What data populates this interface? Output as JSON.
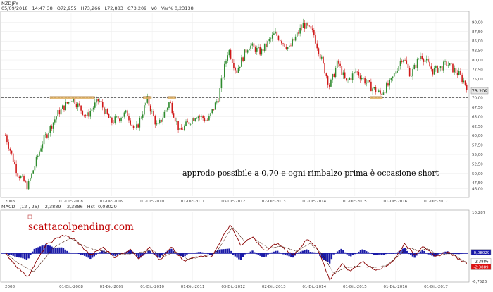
{
  "header": {
    "symbol": "NZDJPY",
    "stats": [
      "05/09/2018",
      "14:47:38",
      "O72,955",
      "H73,266",
      "L72,883",
      "C73,209",
      "V0",
      "Var% 0,23138"
    ]
  },
  "macd_header": {
    "name": "MACD",
    "params": "(12 , 26)",
    "value1": "-2,3889",
    "value2": "-2,3886",
    "hist": "Hst  -0,08029"
  },
  "annotation": "approdo possibile a 0,70 e ogni rimbalzo prima è occasione short",
  "watermark": "scattacolpending.com",
  "colors": {
    "up_candle": "#2e8b2e",
    "down_candle": "#d01818",
    "macd_line": "#8a0000",
    "signal_line": "#4a1a0a",
    "histogram": "#1a1aa8",
    "support_line": "#444444",
    "highlight": "#e0b060",
    "price_tag_bg": "#e6e6e6",
    "red_tag": "#dd1111",
    "blue_tag": "#1a1aa8"
  },
  "chart_data": [
    {
      "type": "candlestick",
      "title": "NZDJPY",
      "ylim": [
        44.0,
        92.5
      ],
      "y_ticks": [
        "90,00",
        "87,50",
        "85,00",
        "82,50",
        "80,00",
        "77,50",
        "75,00",
        "72,50",
        "70,00",
        "67,50",
        "65,00",
        "62,50",
        "60,00",
        "57,50",
        "55,00",
        "52,50",
        "50,00",
        "47,50",
        "46,00"
      ],
      "x_ticks": [
        "01-Dic-2008",
        "01-Dic-2009",
        "01-Dic-2010",
        "01-Dic-2011",
        "03-Dic-2012",
        "02-Dic-2013",
        "01-Dic-2014",
        "01-Dic-2015",
        "01-Dic-2016",
        "01-Dic-2017"
      ],
      "last_price_label": "73,209",
      "support_level": 70.0,
      "highlighted_zones": [
        {
          "from": "2008.4",
          "to": "2009.5",
          "level": 70.0
        },
        {
          "from": "2010.7",
          "to": "2010.9",
          "level": 70.0
        },
        {
          "from": "2011.3",
          "to": "2011.5",
          "level": 70.0
        },
        {
          "from": "2016.3",
          "to": "2016.6",
          "level": 70.0
        }
      ],
      "key_points": [
        {
          "x": 2007.3,
          "y": 60.0
        },
        {
          "x": 2007.6,
          "y": 50.0
        },
        {
          "x": 2007.85,
          "y": 46.5
        },
        {
          "x": 2008.2,
          "y": 58.0
        },
        {
          "x": 2008.6,
          "y": 66.0
        },
        {
          "x": 2008.95,
          "y": 70.0
        },
        {
          "x": 2009.3,
          "y": 65.0
        },
        {
          "x": 2009.6,
          "y": 69.5
        },
        {
          "x": 2009.9,
          "y": 63.5
        },
        {
          "x": 2010.3,
          "y": 66.0
        },
        {
          "x": 2010.5,
          "y": 61.0
        },
        {
          "x": 2010.8,
          "y": 69.5
        },
        {
          "x": 2011.05,
          "y": 62.0
        },
        {
          "x": 2011.35,
          "y": 69.0
        },
        {
          "x": 2011.6,
          "y": 61.0
        },
        {
          "x": 2012.0,
          "y": 65.5
        },
        {
          "x": 2012.3,
          "y": 64.0
        },
        {
          "x": 2012.55,
          "y": 70.0
        },
        {
          "x": 2012.8,
          "y": 83.0
        },
        {
          "x": 2013.0,
          "y": 77.0
        },
        {
          "x": 2013.3,
          "y": 84.0
        },
        {
          "x": 2013.6,
          "y": 82.0
        },
        {
          "x": 2013.95,
          "y": 87.0
        },
        {
          "x": 2014.3,
          "y": 83.0
        },
        {
          "x": 2014.65,
          "y": 89.5
        },
        {
          "x": 2014.9,
          "y": 87.0
        },
        {
          "x": 2015.1,
          "y": 80.0
        },
        {
          "x": 2015.3,
          "y": 73.0
        },
        {
          "x": 2015.5,
          "y": 79.5
        },
        {
          "x": 2015.7,
          "y": 74.0
        },
        {
          "x": 2015.95,
          "y": 77.0
        },
        {
          "x": 2016.3,
          "y": 73.0
        },
        {
          "x": 2016.55,
          "y": 71.0
        },
        {
          "x": 2016.8,
          "y": 74.0
        },
        {
          "x": 2017.1,
          "y": 81.0
        },
        {
          "x": 2017.3,
          "y": 76.0
        },
        {
          "x": 2017.55,
          "y": 81.5
        },
        {
          "x": 2017.85,
          "y": 77.0
        },
        {
          "x": 2018.2,
          "y": 79.0
        },
        {
          "x": 2018.5,
          "y": 76.0
        },
        {
          "x": 2018.68,
          "y": 73.2
        }
      ]
    },
    {
      "type": "line",
      "title": "MACD",
      "ylim": [
        -6.7526,
        10.287
      ],
      "y_ticks": [
        "10,287",
        "-6,7526"
      ],
      "right_labels": [
        "-0,08029",
        "-2,3886",
        "-2,3889"
      ],
      "x_ticks": [
        "01-Dic-2008",
        "01-Dic-2009",
        "01-Dic-2010",
        "01-Dic-2011",
        "03-Dic-2012",
        "02-Dic-2013",
        "01-Dic-2014",
        "01-Dic-2015",
        "01-Dic-2016",
        "01-Dic-2017"
      ],
      "series": [
        {
          "name": "MACD",
          "key_points": [
            {
              "x": 2007.3,
              "y": 0.0
            },
            {
              "x": 2007.6,
              "y": -3.5
            },
            {
              "x": 2007.85,
              "y": -5.8
            },
            {
              "x": 2008.3,
              "y": 2.0
            },
            {
              "x": 2008.7,
              "y": 4.5
            },
            {
              "x": 2009.0,
              "y": 3.5
            },
            {
              "x": 2009.4,
              "y": -0.5
            },
            {
              "x": 2009.7,
              "y": 1.5
            },
            {
              "x": 2010.0,
              "y": -1.0
            },
            {
              "x": 2010.4,
              "y": 1.0
            },
            {
              "x": 2010.6,
              "y": -1.5
            },
            {
              "x": 2010.85,
              "y": 1.8
            },
            {
              "x": 2011.1,
              "y": -1.8
            },
            {
              "x": 2011.4,
              "y": 1.5
            },
            {
              "x": 2011.7,
              "y": -2.0
            },
            {
              "x": 2012.1,
              "y": -0.5
            },
            {
              "x": 2012.4,
              "y": -0.8
            },
            {
              "x": 2012.6,
              "y": 3.0
            },
            {
              "x": 2012.85,
              "y": 7.2
            },
            {
              "x": 2013.1,
              "y": 2.0
            },
            {
              "x": 2013.4,
              "y": 4.0
            },
            {
              "x": 2013.7,
              "y": 0.5
            },
            {
              "x": 2014.0,
              "y": 2.5
            },
            {
              "x": 2014.4,
              "y": -0.5
            },
            {
              "x": 2014.75,
              "y": 3.5
            },
            {
              "x": 2015.0,
              "y": 1.0
            },
            {
              "x": 2015.3,
              "y": -6.5
            },
            {
              "x": 2015.6,
              "y": -2.5
            },
            {
              "x": 2015.8,
              "y": -4.5
            },
            {
              "x": 2016.1,
              "y": -2.0
            },
            {
              "x": 2016.4,
              "y": -4.0
            },
            {
              "x": 2016.65,
              "y": -3.5
            },
            {
              "x": 2016.9,
              "y": -1.5
            },
            {
              "x": 2017.15,
              "y": 2.5
            },
            {
              "x": 2017.4,
              "y": -0.5
            },
            {
              "x": 2017.6,
              "y": 2.0
            },
            {
              "x": 2017.9,
              "y": -1.0
            },
            {
              "x": 2018.2,
              "y": 0.5
            },
            {
              "x": 2018.5,
              "y": -1.5
            },
            {
              "x": 2018.68,
              "y": -2.39
            }
          ]
        },
        {
          "name": "Signal",
          "key_points": [
            {
              "x": 2007.3,
              "y": 0.0
            },
            {
              "x": 2007.7,
              "y": -3.0
            },
            {
              "x": 2008.0,
              "y": -4.5
            },
            {
              "x": 2008.5,
              "y": 1.5
            },
            {
              "x": 2008.9,
              "y": 3.8
            },
            {
              "x": 2009.3,
              "y": 1.5
            },
            {
              "x": 2009.7,
              "y": 0.5
            },
            {
              "x": 2010.1,
              "y": -0.2
            },
            {
              "x": 2010.5,
              "y": 0.0
            },
            {
              "x": 2010.9,
              "y": 0.8
            },
            {
              "x": 2011.2,
              "y": -0.8
            },
            {
              "x": 2011.5,
              "y": 0.5
            },
            {
              "x": 2011.8,
              "y": -1.5
            },
            {
              "x": 2012.2,
              "y": -0.8
            },
            {
              "x": 2012.5,
              "y": 0.2
            },
            {
              "x": 2012.9,
              "y": 6.5
            },
            {
              "x": 2013.2,
              "y": 3.0
            },
            {
              "x": 2013.5,
              "y": 3.2
            },
            {
              "x": 2013.8,
              "y": 1.2
            },
            {
              "x": 2014.1,
              "y": 1.8
            },
            {
              "x": 2014.5,
              "y": 0.5
            },
            {
              "x": 2014.8,
              "y": 2.5
            },
            {
              "x": 2015.1,
              "y": 0.0
            },
            {
              "x": 2015.4,
              "y": -5.0
            },
            {
              "x": 2015.7,
              "y": -3.5
            },
            {
              "x": 2016.0,
              "y": -3.2
            },
            {
              "x": 2016.4,
              "y": -3.5
            },
            {
              "x": 2016.7,
              "y": -3.0
            },
            {
              "x": 2017.0,
              "y": -0.5
            },
            {
              "x": 2017.25,
              "y": 1.5
            },
            {
              "x": 2017.5,
              "y": 0.5
            },
            {
              "x": 2017.7,
              "y": 1.2
            },
            {
              "x": 2018.0,
              "y": -0.5
            },
            {
              "x": 2018.3,
              "y": 0.0
            },
            {
              "x": 2018.68,
              "y": -2.39
            }
          ]
        }
      ]
    }
  ]
}
